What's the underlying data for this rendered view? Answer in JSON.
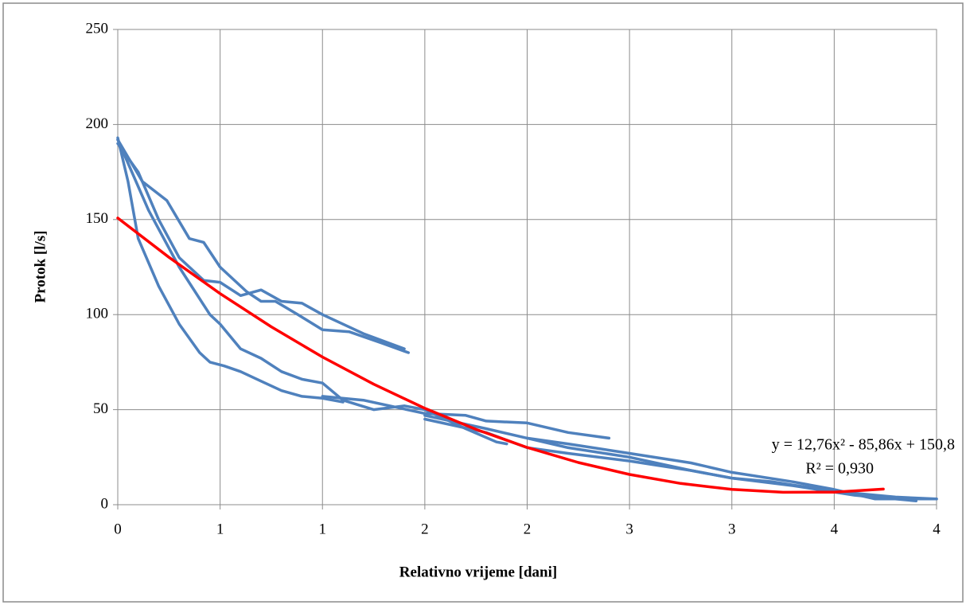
{
  "chart_data": {
    "type": "line",
    "x_label": "Relativno vrijeme [dani]",
    "y_label": "Protok [l/s]",
    "xlim": [
      0,
      4
    ],
    "ylim": [
      0,
      250
    ],
    "xticks": [
      0,
      {
        "value": 0.5,
        "label": "1"
      },
      1,
      {
        "value": 1.5,
        "label": "2"
      },
      2,
      {
        "value": 2.5,
        "label": "3"
      },
      3,
      {
        "value": 3.5,
        "label": "4"
      },
      4
    ],
    "yticks": [
      0,
      50,
      100,
      150,
      200,
      250
    ],
    "grid": true,
    "annotations": [
      "y = 12,76x² - 85,86x + 150,8",
      "R² = 0,930"
    ],
    "annotation_color": "#ff0000",
    "series": [
      {
        "color": "#4f81bd",
        "x": [
          0,
          0.12,
          0.24,
          0.35,
          0.42,
          0.5,
          0.63,
          0.7,
          0.77,
          0.88,
          1.0,
          1.13,
          1.29,
          1.42
        ],
        "values": [
          192,
          170,
          160,
          140,
          138,
          125,
          112,
          107,
          107,
          100,
          92,
          91,
          85,
          80
        ]
      },
      {
        "color": "#4f81bd",
        "x": [
          0,
          0.05,
          0.1,
          0.2,
          0.3,
          0.4,
          0.45,
          0.52,
          0.6,
          0.7,
          0.8,
          0.9,
          1.0,
          1.1
        ],
        "values": [
          193,
          170,
          140,
          115,
          95,
          80,
          75,
          73,
          70,
          65,
          60,
          57,
          56,
          54
        ]
      },
      {
        "color": "#4f81bd",
        "x": [
          0,
          0.1,
          0.2,
          0.3,
          0.42,
          0.5,
          0.6,
          0.7,
          0.8,
          0.9,
          1.0,
          1.2,
          1.4
        ],
        "values": [
          190,
          175,
          150,
          130,
          118,
          117,
          110,
          113,
          107,
          106,
          100,
          90,
          82
        ]
      },
      {
        "color": "#4f81bd",
        "x": [
          0,
          0.15,
          0.3,
          0.45,
          0.5,
          0.6,
          0.7,
          0.8,
          0.9,
          1.0,
          1.1,
          1.25,
          1.4,
          1.5,
          1.6,
          1.7,
          1.85,
          1.9
        ],
        "values": [
          192,
          155,
          125,
          100,
          95,
          82,
          77,
          70,
          66,
          64,
          55,
          50,
          52,
          50,
          45,
          40,
          33,
          32
        ]
      },
      {
        "color": "#4f81bd",
        "x": [
          1.0,
          1.2,
          1.5,
          1.7,
          1.8,
          2.0,
          2.2,
          2.4
        ],
        "values": [
          57,
          55,
          48,
          47,
          44,
          43,
          38,
          35
        ]
      },
      {
        "color": "#4f81bd",
        "x": [
          1.5,
          1.8,
          2.0,
          2.2,
          2.5,
          2.8,
          3.0,
          3.3,
          3.5,
          3.7,
          4.0
        ],
        "values": [
          47,
          40,
          35,
          32,
          27,
          22,
          17,
          12,
          8,
          3,
          3
        ]
      },
      {
        "color": "#4f81bd",
        "x": [
          1.5,
          1.8,
          2.0,
          2.2,
          2.5,
          2.8,
          3.0,
          3.3,
          3.6,
          3.9
        ],
        "values": [
          45,
          38,
          30,
          27,
          23,
          18,
          14,
          10,
          5,
          2
        ]
      },
      {
        "color": "#4f81bd",
        "x": [
          2.0,
          2.2,
          2.5,
          2.8,
          3.0,
          3.2,
          3.5,
          3.8,
          4.0
        ],
        "values": [
          35,
          30,
          25,
          18,
          14,
          12,
          7,
          4,
          3
        ]
      },
      {
        "color": "#ff0000",
        "x": [
          0,
          0.25,
          0.5,
          0.75,
          1.0,
          1.25,
          1.5,
          1.75,
          2.0,
          2.25,
          2.5,
          2.75,
          3.0,
          3.25,
          3.5,
          3.74
        ],
        "values": [
          150.8,
          130.13,
          111.06,
          93.58,
          77.7,
          63.41,
          50.72,
          39.62,
          30.12,
          22.21,
          15.9,
          11.18,
          8.06,
          6.53,
          6.6,
          8.2
        ]
      }
    ]
  }
}
